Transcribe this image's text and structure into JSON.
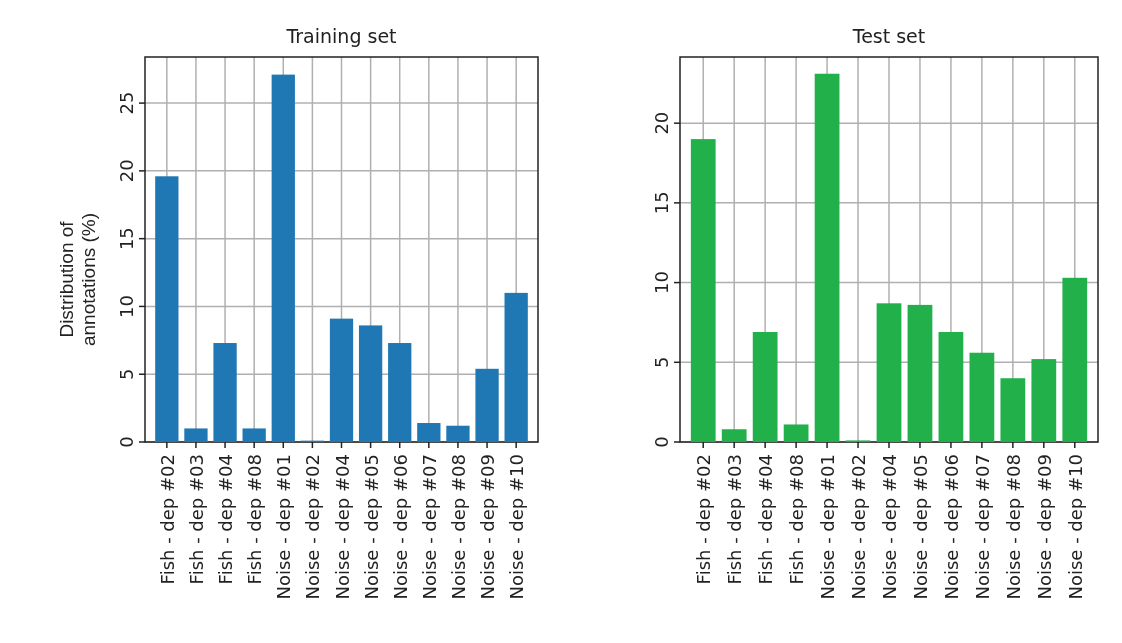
{
  "chart_data": [
    {
      "type": "bar",
      "title": "Training set",
      "ylabel": "Distribution of annotations (%)",
      "categories": [
        "Fish - dep #02",
        "Fish - dep #03",
        "Fish - dep #04",
        "Fish - dep #08",
        "Noise - dep #01",
        "Noise - dep #02",
        "Noise - dep #04",
        "Noise - dep #05",
        "Noise - dep #06",
        "Noise - dep #07",
        "Noise - dep #08",
        "Noise - dep #09",
        "Noise - dep #10"
      ],
      "values": [
        19.6,
        1.0,
        7.3,
        1.0,
        27.1,
        0.1,
        9.1,
        8.6,
        7.3,
        1.4,
        1.2,
        5.4,
        11.0
      ],
      "color": "#1f77b4",
      "ylim": [
        0,
        28.4
      ],
      "yticks": [
        0,
        5,
        10,
        15,
        20,
        25
      ],
      "grid": true
    },
    {
      "type": "bar",
      "title": "Test set",
      "categories": [
        "Fish - dep #02",
        "Fish - dep #03",
        "Fish - dep #04",
        "Fish - dep #08",
        "Noise - dep #01",
        "Noise - dep #02",
        "Noise - dep #04",
        "Noise - dep #05",
        "Noise - dep #06",
        "Noise - dep #07",
        "Noise - dep #08",
        "Noise - dep #09",
        "Noise - dep #10"
      ],
      "values": [
        19.0,
        0.8,
        6.9,
        1.1,
        23.1,
        0.1,
        8.7,
        8.6,
        6.9,
        5.6,
        4.0,
        5.2,
        10.3
      ],
      "color": "#22b04b",
      "ylim": [
        0,
        24.15
      ],
      "yticks": [
        0,
        5,
        10,
        15,
        20
      ],
      "grid": true
    }
  ]
}
